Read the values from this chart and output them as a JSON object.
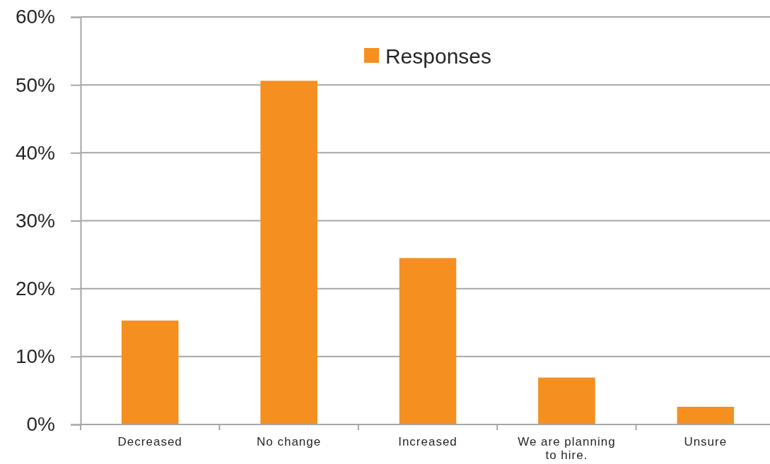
{
  "chart_data": {
    "type": "bar",
    "categories": [
      "Decreased",
      "No change",
      "Increased",
      "We are planning to hire.",
      "Unsure"
    ],
    "series": [
      {
        "name": "Responses",
        "color": "#f48f20",
        "values": [
          15.3,
          50.6,
          24.5,
          6.9,
          2.6
        ]
      }
    ],
    "ylim": [
      0,
      60
    ],
    "yticks": [
      {
        "value": 0,
        "label": "0%"
      },
      {
        "value": 10,
        "label": "10%"
      },
      {
        "value": 20,
        "label": "20%"
      },
      {
        "value": 30,
        "label": "30%"
      },
      {
        "value": 40,
        "label": "40%"
      },
      {
        "value": 50,
        "label": "50%"
      },
      {
        "value": 60,
        "label": "60%"
      }
    ],
    "grid": "y",
    "legend": "top"
  }
}
